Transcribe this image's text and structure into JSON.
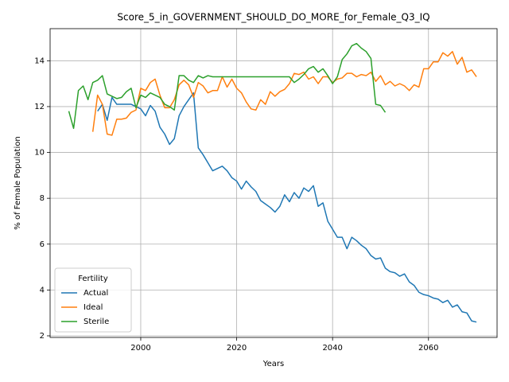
{
  "chart_data": {
    "type": "line",
    "title": "Score_5_in_GOVERNMENT_SHOULD_DO_MORE_for_Female_Q3_IQ",
    "x_label": "Years",
    "y_label": "% of Female Population",
    "legend_title": "Fertility",
    "legend": "lower left",
    "grid": true,
    "xlim": [
      1981.1,
      2074.3
    ],
    "ylim": [
      1.93,
      15.4
    ],
    "xticks": [
      2000,
      2020,
      2040,
      2060
    ],
    "yticks": [
      2,
      4,
      6,
      8,
      10,
      12,
      14
    ],
    "x": [
      1985,
      1986,
      1987,
      1988,
      1989,
      1990,
      1991,
      1992,
      1993,
      1994,
      1995,
      1996,
      1997,
      1998,
      1999,
      2000,
      2001,
      2002,
      2003,
      2004,
      2005,
      2006,
      2007,
      2008,
      2009,
      2010,
      2011,
      2012,
      2013,
      2014,
      2015,
      2016,
      2017,
      2018,
      2019,
      2020,
      2021,
      2022,
      2023,
      2024,
      2025,
      2026,
      2027,
      2028,
      2029,
      2030,
      2031,
      2032,
      2033,
      2034,
      2035,
      2036,
      2037,
      2038,
      2039,
      2040,
      2041,
      2042,
      2043,
      2044,
      2045,
      2046,
      2047,
      2048,
      2049,
      2050,
      2051,
      2052,
      2053,
      2054,
      2055,
      2056,
      2057,
      2058,
      2059,
      2060,
      2061,
      2062,
      2063,
      2064,
      2065,
      2066,
      2067,
      2068,
      2069,
      2070
    ],
    "series": [
      {
        "name": "Actual",
        "color": "#1f77b4",
        "values": [
          null,
          null,
          null,
          null,
          null,
          null,
          11.8,
          12.1,
          11.4,
          12.4,
          12.1,
          12.1,
          12.1,
          12.1,
          12.0,
          11.9,
          11.6,
          12.05,
          11.8,
          11.1,
          10.8,
          10.35,
          10.6,
          11.6,
          12.0,
          12.3,
          12.6,
          10.2,
          9.9,
          9.55,
          9.2,
          9.3,
          9.4,
          9.2,
          8.9,
          8.75,
          8.4,
          8.75,
          8.5,
          8.3,
          7.9,
          7.75,
          7.6,
          7.4,
          7.65,
          8.15,
          7.85,
          8.25,
          8.0,
          8.45,
          8.3,
          8.55,
          7.65,
          7.8,
          7.0,
          6.65,
          6.3,
          6.3,
          5.8,
          6.3,
          6.15,
          5.95,
          5.8,
          5.5,
          5.35,
          5.4,
          4.95,
          4.8,
          4.75,
          4.6,
          4.7,
          4.35,
          4.2,
          3.9,
          3.8,
          3.75,
          3.65,
          3.6,
          3.45,
          3.55,
          3.25,
          3.35,
          3.05,
          3.0,
          2.65,
          2.6
        ]
      },
      {
        "name": "Ideal",
        "color": "#ff7f0e",
        "values": [
          null,
          null,
          null,
          null,
          null,
          10.9,
          12.5,
          12.1,
          10.8,
          10.75,
          11.45,
          11.45,
          11.5,
          11.75,
          11.85,
          12.8,
          12.7,
          13.05,
          13.2,
          12.5,
          11.95,
          11.95,
          12.3,
          12.95,
          13.15,
          12.95,
          12.4,
          13.05,
          12.9,
          12.6,
          12.7,
          12.7,
          13.3,
          12.85,
          13.2,
          12.8,
          12.6,
          12.2,
          11.9,
          11.85,
          12.3,
          12.1,
          12.65,
          12.45,
          12.65,
          12.75,
          13.0,
          13.45,
          13.4,
          13.5,
          13.2,
          13.3,
          13.0,
          13.3,
          13.3,
          13.05,
          13.2,
          13.25,
          13.45,
          13.45,
          13.3,
          13.4,
          13.35,
          13.5,
          13.1,
          13.35,
          12.95,
          13.1,
          12.9,
          13.0,
          12.9,
          12.7,
          12.95,
          12.85,
          13.65,
          13.65,
          13.95,
          13.95,
          14.35,
          14.2,
          14.4,
          13.85,
          14.15,
          13.5,
          13.6,
          13.3
        ]
      },
      {
        "name": "Sterile",
        "color": "#2ca02c",
        "values": [
          11.8,
          11.05,
          12.7,
          12.9,
          12.3,
          13.05,
          13.15,
          13.35,
          12.55,
          12.45,
          12.35,
          12.4,
          12.65,
          12.8,
          11.95,
          12.5,
          12.4,
          12.6,
          12.5,
          12.4,
          12.1,
          12.0,
          11.85,
          13.35,
          13.35,
          13.15,
          13.05,
          13.35,
          13.25,
          13.35,
          13.3,
          13.3,
          13.3,
          13.3,
          13.3,
          13.3,
          13.3,
          13.3,
          13.3,
          13.3,
          13.3,
          13.3,
          13.3,
          13.3,
          13.3,
          13.3,
          13.3,
          13.05,
          13.2,
          13.4,
          13.65,
          13.75,
          13.5,
          13.65,
          13.35,
          13.0,
          13.3,
          14.05,
          14.3,
          14.65,
          14.75,
          14.55,
          14.4,
          14.1,
          12.1,
          12.05,
          11.75,
          null,
          null,
          null,
          null,
          null,
          null,
          null,
          null,
          null,
          null,
          null,
          null,
          null,
          null,
          null,
          null,
          null,
          null,
          null
        ]
      }
    ]
  }
}
